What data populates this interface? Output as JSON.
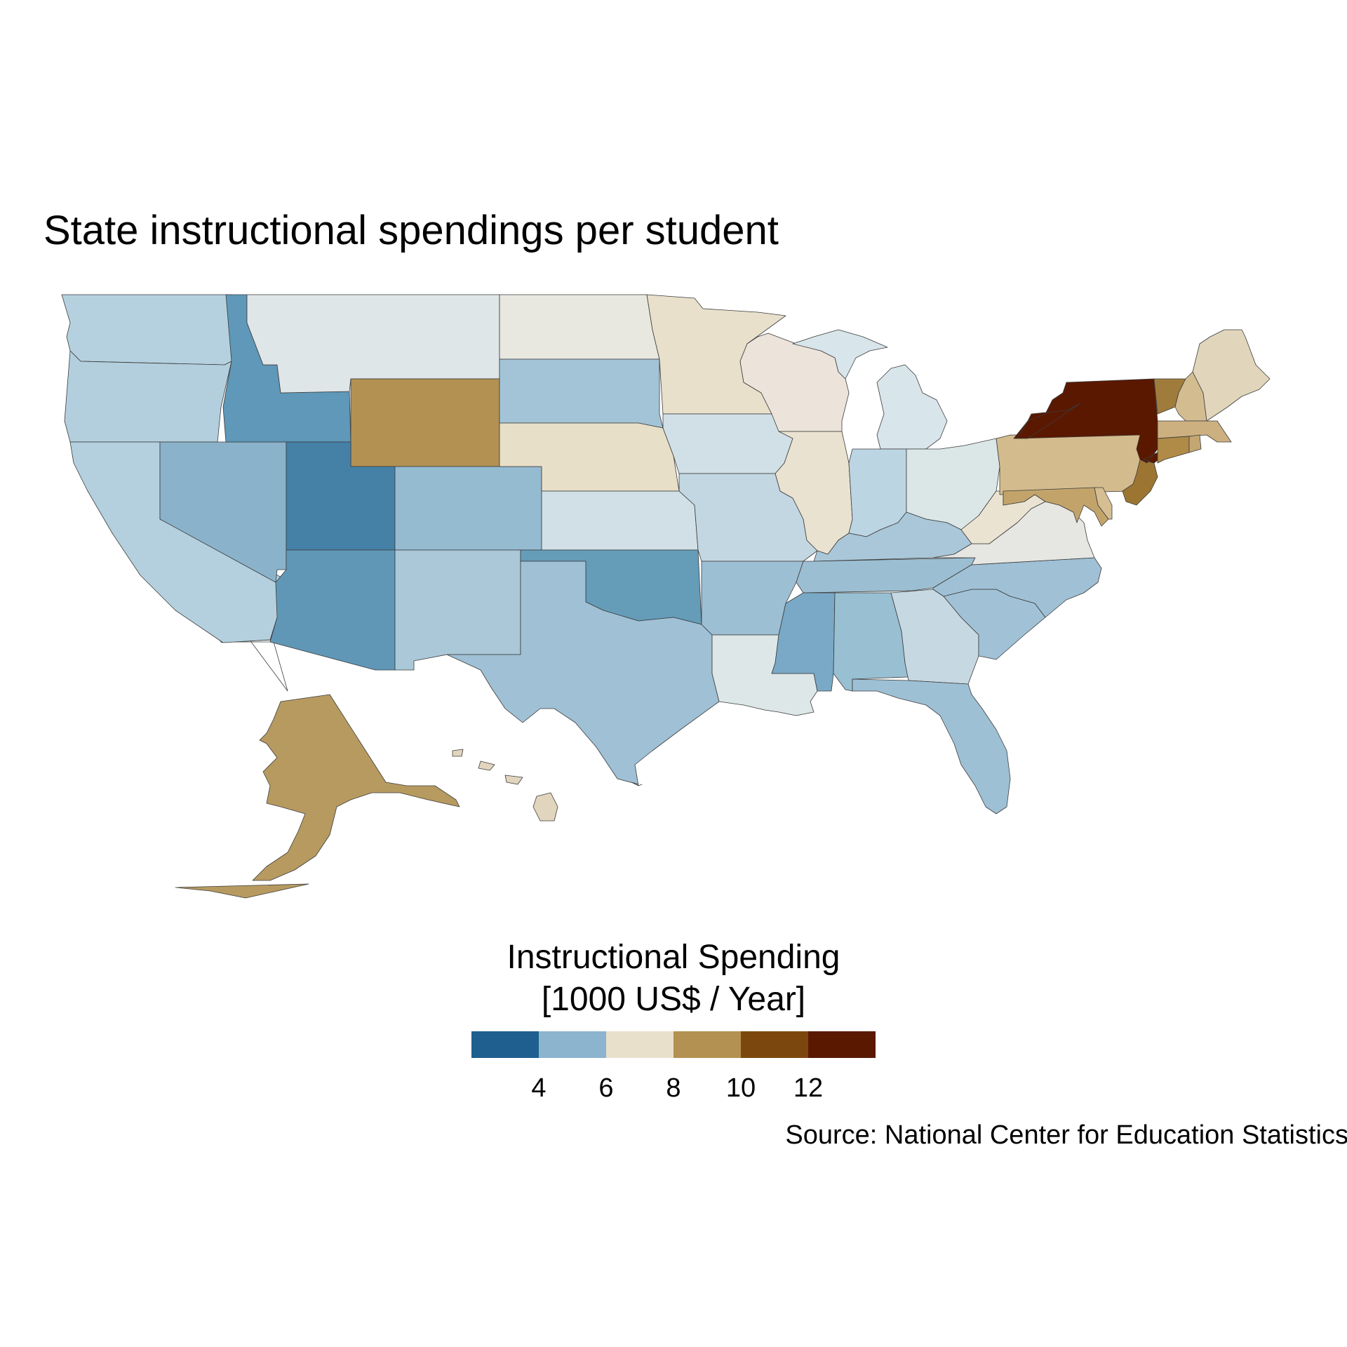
{
  "title": "State instructional spendings per student",
  "legend": {
    "title_line1": "Instructional Spending",
    "title_line2": "[1000 US$ / Year]",
    "bins": [
      "#1e5f8f",
      "#8db4cf",
      "#e9e0cc",
      "#b39152",
      "#7c470e",
      "#5a1800"
    ],
    "ticks": [
      "4",
      "6",
      "8",
      "10",
      "12"
    ]
  },
  "caption": "Source: National Center for Education Statistics",
  "map_data": {
    "type": "choropleth",
    "region": "United States",
    "states": [
      {
        "name": "Washington",
        "color": "#b5d1df"
      },
      {
        "name": "Oregon",
        "color": "#b3cfdd"
      },
      {
        "name": "California",
        "color": "#b4d0de"
      },
      {
        "name": "Idaho",
        "color": "#5f98b8"
      },
      {
        "name": "Nevada",
        "color": "#8ab3cb"
      },
      {
        "name": "Utah",
        "color": "#4581a7"
      },
      {
        "name": "Arizona",
        "color": "#6097b7"
      },
      {
        "name": "Montana",
        "color": "#dfe6e8"
      },
      {
        "name": "Wyoming",
        "color": "#b39152"
      },
      {
        "name": "Colorado",
        "color": "#95bbd1"
      },
      {
        "name": "New Mexico",
        "color": "#aac8d8"
      },
      {
        "name": "North Dakota",
        "color": "#e8e7e0"
      },
      {
        "name": "South Dakota",
        "color": "#a3c4d7"
      },
      {
        "name": "Nebraska",
        "color": "#e8dfc8"
      },
      {
        "name": "Kansas",
        "color": "#d0e0e6"
      },
      {
        "name": "Oklahoma",
        "color": "#659db9"
      },
      {
        "name": "Texas",
        "color": "#9fc0d5"
      },
      {
        "name": "Minnesota",
        "color": "#e8e0cb"
      },
      {
        "name": "Iowa",
        "color": "#d0e0e6"
      },
      {
        "name": "Missouri",
        "color": "#c2d7e2"
      },
      {
        "name": "Arkansas",
        "color": "#9dbfd3"
      },
      {
        "name": "Louisiana",
        "color": "#dde7e8"
      },
      {
        "name": "Wisconsin",
        "color": "#ece4da"
      },
      {
        "name": "Illinois",
        "color": "#eae2d0"
      },
      {
        "name": "Michigan",
        "color": "#d8e5ea"
      },
      {
        "name": "Indiana",
        "color": "#bcd5e3"
      },
      {
        "name": "Ohio",
        "color": "#dbe6e6"
      },
      {
        "name": "Kentucky",
        "color": "#a9c7d8"
      },
      {
        "name": "Tennessee",
        "color": "#9cbed2"
      },
      {
        "name": "Mississippi",
        "color": "#79a9c6"
      },
      {
        "name": "Alabama",
        "color": "#98bfd2"
      },
      {
        "name": "Georgia",
        "color": "#c6d8e1"
      },
      {
        "name": "Florida",
        "color": "#9ec0d5"
      },
      {
        "name": "South Carolina",
        "color": "#a1c2d6"
      },
      {
        "name": "North Carolina",
        "color": "#9fc0d5"
      },
      {
        "name": "Virginia",
        "color": "#e6e6e3"
      },
      {
        "name": "West Virginia",
        "color": "#ebe3d2"
      },
      {
        "name": "Pennsylvania",
        "color": "#d3bb8d"
      },
      {
        "name": "New York",
        "color": "#5a1800"
      },
      {
        "name": "Vermont",
        "color": "#a07c3c"
      },
      {
        "name": "New Hampshire",
        "color": "#d3bc90"
      },
      {
        "name": "Maine",
        "color": "#e1d5bb"
      },
      {
        "name": "Massachusetts",
        "color": "#cdb080"
      },
      {
        "name": "Connecticut",
        "color": "#b08b48"
      },
      {
        "name": "Rhode Island",
        "color": "#c4a670"
      },
      {
        "name": "New Jersey",
        "color": "#9c7533"
      },
      {
        "name": "Delaware",
        "color": "#d5be92"
      },
      {
        "name": "Maryland",
        "color": "#c2a46b"
      },
      {
        "name": "Alaska",
        "color": "#b79a60"
      },
      {
        "name": "Hawaii",
        "color": "#e2d5bd"
      }
    ]
  }
}
